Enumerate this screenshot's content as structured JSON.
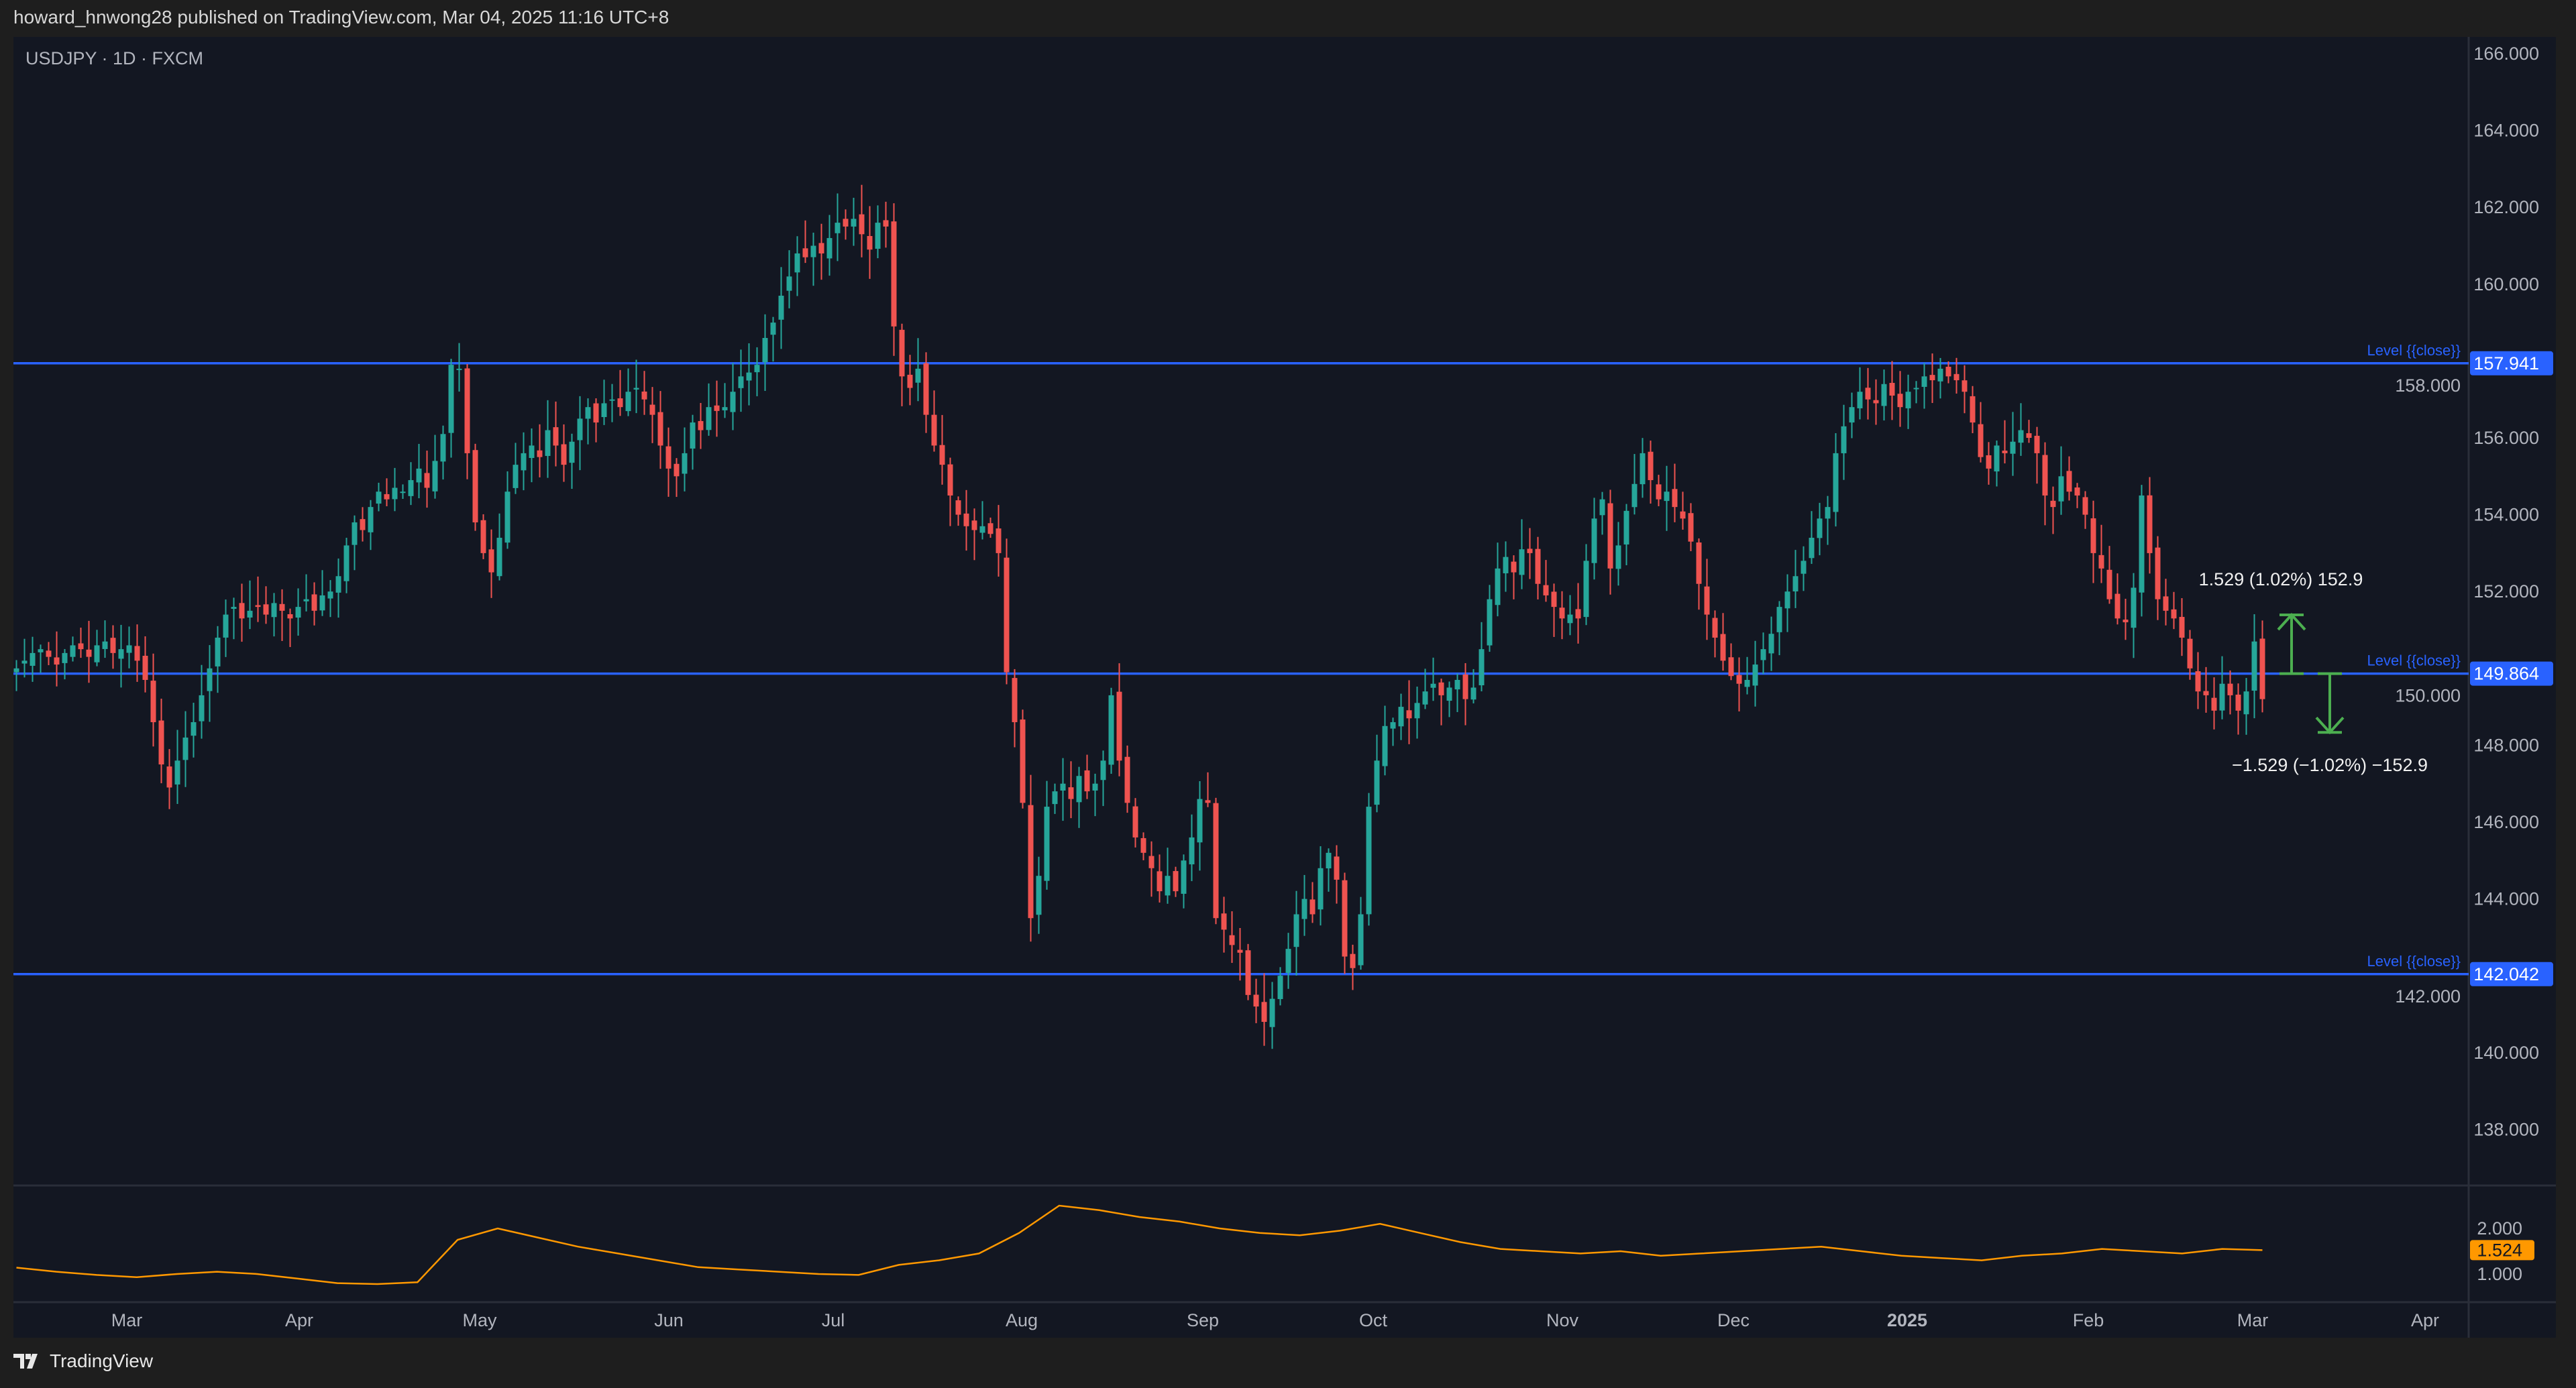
{
  "header": {
    "published": "howard_hnwong28 published on TradingView.com, Mar 04, 2025 11:16 UTC+8"
  },
  "footer": {
    "brand": "TradingView",
    "logo_icon": "tradingview-logo-icon"
  },
  "colors": {
    "background": "#131722",
    "up": "#26a69a",
    "down": "#ef5350",
    "level": "#2962ff",
    "indicator": "#ff9800",
    "measure": "#4caf50"
  },
  "chart_data": {
    "type": "candlestick",
    "title": "USDJPY · 1D · FXCM",
    "ylim": [
      137,
      167
    ],
    "yticks": [
      "166.000",
      "164.000",
      "162.000",
      "160.000",
      "158.000",
      "156.000",
      "154.000",
      "152.000",
      "150.000",
      "148.000",
      "146.000",
      "144.000",
      "142.000",
      "140.000",
      "138.000"
    ],
    "xticks": [
      "Mar",
      "Apr",
      "May",
      "Jun",
      "Jul",
      "Aug",
      "Sep",
      "Oct",
      "Nov",
      "Dec",
      "2025",
      "Feb",
      "Mar",
      "Apr"
    ],
    "grid": false,
    "closes": [
      150.0,
      150.2,
      150.4,
      150.5,
      150.3,
      150.1,
      150.4,
      150.6,
      150.5,
      150.3,
      150.6,
      150.7,
      150.4,
      150.5,
      150.6,
      150.2,
      149.7,
      148.6,
      147.5,
      146.9,
      147.6,
      148.2,
      148.6,
      149.3,
      150.0,
      150.8,
      151.4,
      151.6,
      151.3,
      151.5,
      151.6,
      151.4,
      151.7,
      151.5,
      151.3,
      151.6,
      151.8,
      151.5,
      151.9,
      152.0,
      152.4,
      153.2,
      153.8,
      153.6,
      154.2,
      154.6,
      154.4,
      154.7,
      154.6,
      154.9,
      155.2,
      154.7,
      155.4,
      156.1,
      157.9,
      157.8,
      155.6,
      153.8,
      153.0,
      152.5,
      153.4,
      154.6,
      155.3,
      155.6,
      155.8,
      155.5,
      156.2,
      155.8,
      155.3,
      155.9,
      156.5,
      156.8,
      156.4,
      156.9,
      157.0,
      156.8,
      157.2,
      157.3,
      157.0,
      156.6,
      155.8,
      155.2,
      155.0,
      155.6,
      156.4,
      156.2,
      156.8,
      156.7,
      156.8,
      157.2,
      157.6,
      157.7,
      157.9,
      158.6,
      159.0,
      159.7,
      160.2,
      160.8,
      160.7,
      161.0,
      160.8,
      161.2,
      161.6,
      161.5,
      161.7,
      161.3,
      160.9,
      161.6,
      161.5,
      158.9,
      157.6,
      157.3,
      157.8,
      156.6,
      155.8,
      155.3,
      154.5,
      154.0,
      153.7,
      153.6,
      153.7,
      153.5,
      153.0,
      149.9,
      148.6,
      146.5,
      143.5,
      144.6,
      146.4,
      146.8,
      147.0,
      146.6,
      147.2,
      146.8,
      147.0,
      147.6,
      149.3,
      147.6,
      146.5,
      145.6,
      145.2,
      144.8,
      144.2,
      144.6,
      144.2,
      145.0,
      145.6,
      146.6,
      146.5,
      143.5,
      143.2,
      142.8,
      142.6,
      141.5,
      141.2,
      140.8,
      141.4,
      142.0,
      142.7,
      143.6,
      144.0,
      143.6,
      144.8,
      145.2,
      144.5,
      142.5,
      142.2,
      143.6,
      146.4,
      147.6,
      148.5,
      148.6,
      149.0,
      148.7,
      149.1,
      149.4,
      149.6,
      149.3,
      149.5,
      149.7,
      149.2,
      149.5,
      150.5,
      151.8,
      152.6,
      152.9,
      152.5,
      153.1,
      153.0,
      152.2,
      151.9,
      151.6,
      151.3,
      151.4,
      151.3,
      152.8,
      153.9,
      154.4,
      152.6,
      153.2,
      154.1,
      154.8,
      155.6,
      154.9,
      154.4,
      154.6,
      154.2,
      153.9,
      153.3,
      152.2,
      151.4,
      150.8,
      150.2,
      149.8,
      149.6,
      149.7,
      150.1,
      150.5,
      150.9,
      151.6,
      152.0,
      152.4,
      152.8,
      153.4,
      153.9,
      154.2,
      155.6,
      156.3,
      156.8,
      157.2,
      157.0,
      156.9,
      157.4,
      157.1,
      156.8,
      157.2,
      157.3,
      157.6,
      157.5,
      157.8,
      157.6,
      157.5,
      157.2,
      156.4,
      155.5,
      155.2,
      155.8,
      155.6,
      155.9,
      156.2,
      156.0,
      155.6,
      154.5,
      154.2,
      155.0,
      154.6,
      154.5,
      154.0,
      153.0,
      152.6,
      151.8,
      151.3,
      151.2,
      152.1,
      154.5,
      153.0,
      151.8,
      151.5,
      151.3,
      150.8,
      150.0,
      149.4,
      149.3,
      148.9,
      149.6,
      149.3,
      148.9,
      149.4,
      150.7,
      149.2
    ],
    "levels": [
      {
        "price": 157.941,
        "label": "Level {{close}}",
        "tag": "157.941"
      },
      {
        "price": 149.864,
        "label": "Level {{close}}",
        "tag": "149.864"
      },
      {
        "price": 142.042,
        "label": "Level {{close}}",
        "tag": "142.042"
      }
    ],
    "measures": [
      {
        "from": 149.864,
        "to": 151.393,
        "text": "1.529 (1.02%) 152.9"
      },
      {
        "from": 149.864,
        "to": 148.335,
        "text": "−1.529 (−1.02%) −152.9"
      }
    ],
    "indicator": {
      "ylim": [
        0.4,
        2.9
      ],
      "yticks": [
        "2.000",
        "1.000"
      ],
      "last": "1.524",
      "values": [
        1.14,
        1.05,
        0.98,
        0.93,
        1.0,
        1.05,
        1.0,
        0.9,
        0.8,
        0.78,
        0.82,
        1.75,
        2.0,
        1.8,
        1.6,
        1.45,
        1.3,
        1.15,
        1.1,
        1.05,
        1.0,
        0.98,
        1.2,
        1.3,
        1.45,
        1.9,
        2.5,
        2.4,
        2.25,
        2.15,
        2.0,
        1.9,
        1.85,
        1.95,
        2.1,
        1.9,
        1.7,
        1.55,
        1.5,
        1.45,
        1.5,
        1.4,
        1.45,
        1.5,
        1.55,
        1.6,
        1.5,
        1.4,
        1.35,
        1.3,
        1.4,
        1.45,
        1.55,
        1.5,
        1.45,
        1.55,
        1.524
      ]
    }
  }
}
